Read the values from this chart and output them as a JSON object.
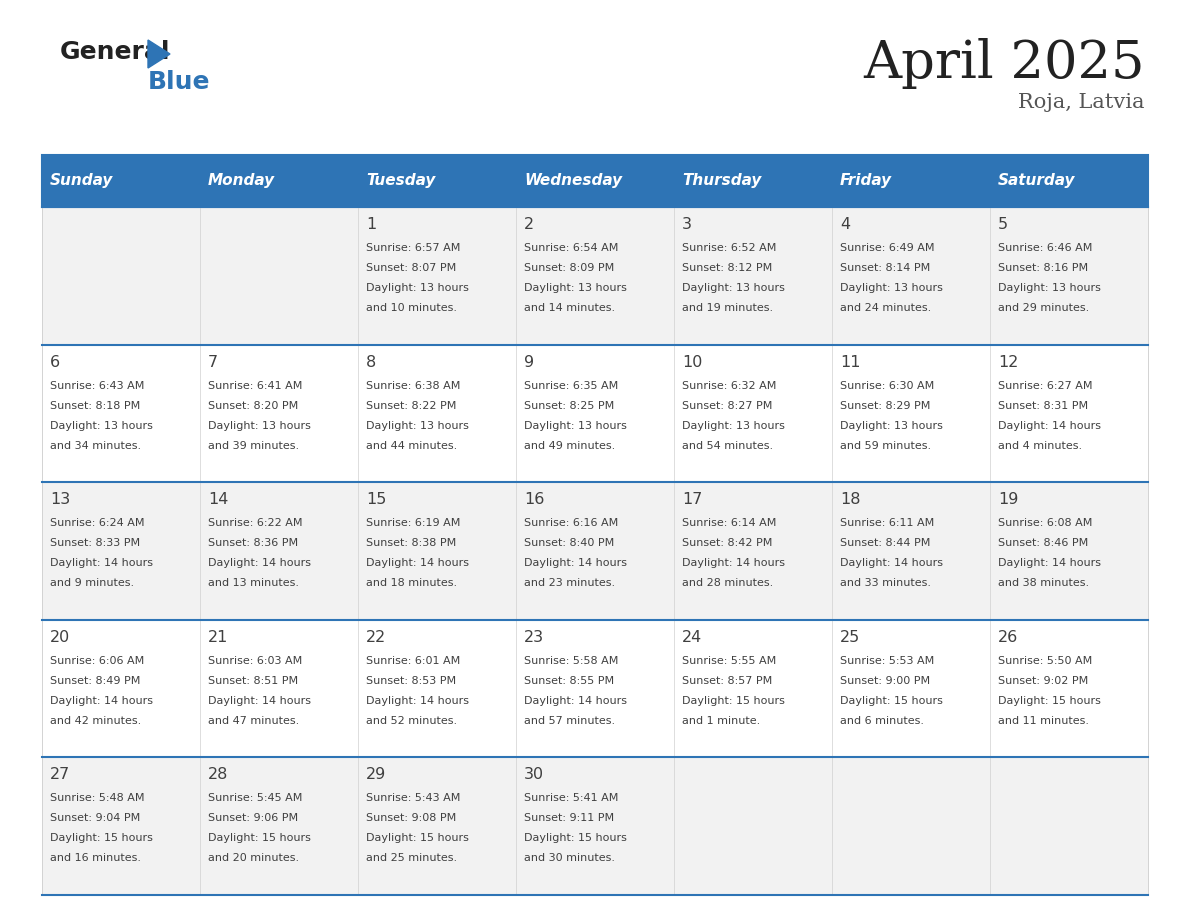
{
  "title": "April 2025",
  "subtitle": "Roja, Latvia",
  "days_of_week": [
    "Sunday",
    "Monday",
    "Tuesday",
    "Wednesday",
    "Thursday",
    "Friday",
    "Saturday"
  ],
  "header_bg": "#2E74B5",
  "header_text_color": "#FFFFFF",
  "cell_bg_odd": "#F2F2F2",
  "cell_bg_even": "#FFFFFF",
  "border_color": "#2E74B5",
  "row_line_color": "#5B9BD5",
  "col_line_color": "#D0D0D0",
  "text_color": "#404040",
  "title_color": "#222222",
  "subtitle_color": "#555555",
  "logo_general_color": "#222222",
  "logo_blue_color": "#2E74B5",
  "weeks": [
    [
      {
        "day": null,
        "info": null
      },
      {
        "day": null,
        "info": null
      },
      {
        "day": 1,
        "info": "Sunrise: 6:57 AM\nSunset: 8:07 PM\nDaylight: 13 hours\nand 10 minutes."
      },
      {
        "day": 2,
        "info": "Sunrise: 6:54 AM\nSunset: 8:09 PM\nDaylight: 13 hours\nand 14 minutes."
      },
      {
        "day": 3,
        "info": "Sunrise: 6:52 AM\nSunset: 8:12 PM\nDaylight: 13 hours\nand 19 minutes."
      },
      {
        "day": 4,
        "info": "Sunrise: 6:49 AM\nSunset: 8:14 PM\nDaylight: 13 hours\nand 24 minutes."
      },
      {
        "day": 5,
        "info": "Sunrise: 6:46 AM\nSunset: 8:16 PM\nDaylight: 13 hours\nand 29 minutes."
      }
    ],
    [
      {
        "day": 6,
        "info": "Sunrise: 6:43 AM\nSunset: 8:18 PM\nDaylight: 13 hours\nand 34 minutes."
      },
      {
        "day": 7,
        "info": "Sunrise: 6:41 AM\nSunset: 8:20 PM\nDaylight: 13 hours\nand 39 minutes."
      },
      {
        "day": 8,
        "info": "Sunrise: 6:38 AM\nSunset: 8:22 PM\nDaylight: 13 hours\nand 44 minutes."
      },
      {
        "day": 9,
        "info": "Sunrise: 6:35 AM\nSunset: 8:25 PM\nDaylight: 13 hours\nand 49 minutes."
      },
      {
        "day": 10,
        "info": "Sunrise: 6:32 AM\nSunset: 8:27 PM\nDaylight: 13 hours\nand 54 minutes."
      },
      {
        "day": 11,
        "info": "Sunrise: 6:30 AM\nSunset: 8:29 PM\nDaylight: 13 hours\nand 59 minutes."
      },
      {
        "day": 12,
        "info": "Sunrise: 6:27 AM\nSunset: 8:31 PM\nDaylight: 14 hours\nand 4 minutes."
      }
    ],
    [
      {
        "day": 13,
        "info": "Sunrise: 6:24 AM\nSunset: 8:33 PM\nDaylight: 14 hours\nand 9 minutes."
      },
      {
        "day": 14,
        "info": "Sunrise: 6:22 AM\nSunset: 8:36 PM\nDaylight: 14 hours\nand 13 minutes."
      },
      {
        "day": 15,
        "info": "Sunrise: 6:19 AM\nSunset: 8:38 PM\nDaylight: 14 hours\nand 18 minutes."
      },
      {
        "day": 16,
        "info": "Sunrise: 6:16 AM\nSunset: 8:40 PM\nDaylight: 14 hours\nand 23 minutes."
      },
      {
        "day": 17,
        "info": "Sunrise: 6:14 AM\nSunset: 8:42 PM\nDaylight: 14 hours\nand 28 minutes."
      },
      {
        "day": 18,
        "info": "Sunrise: 6:11 AM\nSunset: 8:44 PM\nDaylight: 14 hours\nand 33 minutes."
      },
      {
        "day": 19,
        "info": "Sunrise: 6:08 AM\nSunset: 8:46 PM\nDaylight: 14 hours\nand 38 minutes."
      }
    ],
    [
      {
        "day": 20,
        "info": "Sunrise: 6:06 AM\nSunset: 8:49 PM\nDaylight: 14 hours\nand 42 minutes."
      },
      {
        "day": 21,
        "info": "Sunrise: 6:03 AM\nSunset: 8:51 PM\nDaylight: 14 hours\nand 47 minutes."
      },
      {
        "day": 22,
        "info": "Sunrise: 6:01 AM\nSunset: 8:53 PM\nDaylight: 14 hours\nand 52 minutes."
      },
      {
        "day": 23,
        "info": "Sunrise: 5:58 AM\nSunset: 8:55 PM\nDaylight: 14 hours\nand 57 minutes."
      },
      {
        "day": 24,
        "info": "Sunrise: 5:55 AM\nSunset: 8:57 PM\nDaylight: 15 hours\nand 1 minute."
      },
      {
        "day": 25,
        "info": "Sunrise: 5:53 AM\nSunset: 9:00 PM\nDaylight: 15 hours\nand 6 minutes."
      },
      {
        "day": 26,
        "info": "Sunrise: 5:50 AM\nSunset: 9:02 PM\nDaylight: 15 hours\nand 11 minutes."
      }
    ],
    [
      {
        "day": 27,
        "info": "Sunrise: 5:48 AM\nSunset: 9:04 PM\nDaylight: 15 hours\nand 16 minutes."
      },
      {
        "day": 28,
        "info": "Sunrise: 5:45 AM\nSunset: 9:06 PM\nDaylight: 15 hours\nand 20 minutes."
      },
      {
        "day": 29,
        "info": "Sunrise: 5:43 AM\nSunset: 9:08 PM\nDaylight: 15 hours\nand 25 minutes."
      },
      {
        "day": 30,
        "info": "Sunrise: 5:41 AM\nSunset: 9:11 PM\nDaylight: 15 hours\nand 30 minutes."
      },
      {
        "day": null,
        "info": null
      },
      {
        "day": null,
        "info": null
      },
      {
        "day": null,
        "info": null
      }
    ]
  ]
}
